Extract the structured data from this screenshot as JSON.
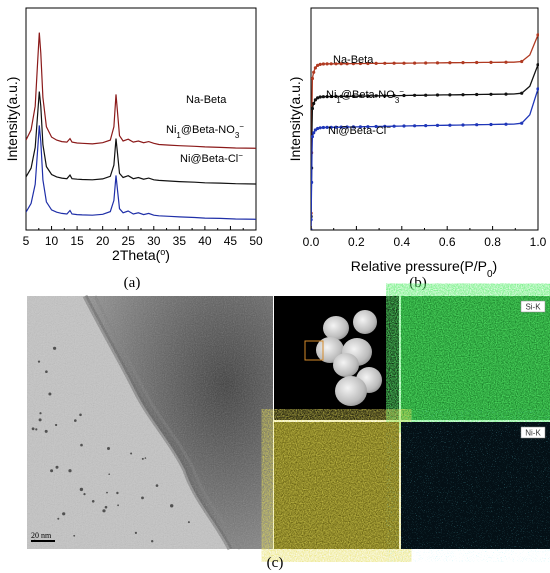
{
  "chart_data": [
    {
      "panel": "(a)",
      "type": "line",
      "xlabel": "2Theta(°)",
      "ylabel": "Intensity(a.u.)",
      "xlim": [
        5,
        50
      ],
      "xticks": [
        5,
        10,
        15,
        20,
        25,
        30,
        35,
        40,
        45,
        50
      ],
      "yticks": [],
      "grid": false,
      "series": [
        {
          "name": "Na-Beta",
          "name_parts": [
            "Na-Beta",
            "",
            "",
            ""
          ],
          "color": "#8B1A1A",
          "offset": 2.4,
          "x": [
            5,
            6,
            6.8,
            7.3,
            7.6,
            7.9,
            8.3,
            9,
            10,
            11,
            12,
            13,
            13.6,
            14,
            15,
            16,
            18,
            20,
            21.5,
            22.2,
            22.6,
            22.9,
            23.3,
            24,
            25,
            26,
            27,
            28,
            29,
            30,
            31,
            33,
            35,
            38,
            40,
            43,
            46,
            50
          ],
          "y": [
            0.45,
            0.8,
            1.6,
            3.2,
            4.1,
            3.4,
            1.9,
            0.9,
            0.55,
            0.45,
            0.4,
            0.38,
            0.5,
            0.38,
            0.35,
            0.34,
            0.32,
            0.36,
            0.45,
            0.9,
            2.0,
            1.4,
            0.6,
            0.42,
            0.48,
            0.38,
            0.42,
            0.36,
            0.4,
            0.34,
            0.3,
            0.28,
            0.26,
            0.24,
            0.22,
            0.2,
            0.18,
            0.17
          ]
        },
        {
          "name": "Ni1@Beta-NO3−",
          "name_parts": [
            "Ni",
            "1",
            "@Beta-NO",
            "3"
          ],
          "color": "#111111",
          "offset": 1.2,
          "x": [
            5,
            6,
            6.8,
            7.3,
            7.6,
            7.9,
            8.3,
            9,
            10,
            11,
            12,
            13,
            13.6,
            14,
            15,
            16,
            18,
            20,
            21.5,
            22.2,
            22.6,
            22.9,
            23.3,
            24,
            25,
            26,
            27,
            28,
            29,
            30,
            31,
            33,
            35,
            38,
            40,
            43,
            46,
            50
          ],
          "y": [
            0.4,
            0.7,
            1.4,
            2.6,
            3.3,
            2.8,
            1.5,
            0.75,
            0.48,
            0.4,
            0.36,
            0.34,
            0.46,
            0.34,
            0.32,
            0.31,
            0.3,
            0.33,
            0.42,
            0.8,
            1.7,
            1.2,
            0.52,
            0.38,
            0.44,
            0.34,
            0.38,
            0.32,
            0.36,
            0.3,
            0.28,
            0.26,
            0.24,
            0.22,
            0.2,
            0.19,
            0.17,
            0.16
          ]
        },
        {
          "name": "Ni@Beta-Cl−",
          "name_parts": [
            "Ni@Beta-Cl",
            "",
            "",
            ""
          ],
          "color": "#1F2FA8",
          "offset": 0,
          "x": [
            5,
            6,
            6.8,
            7.3,
            7.6,
            7.9,
            8.3,
            9,
            10,
            11,
            12,
            13,
            13.6,
            14,
            15,
            16,
            18,
            20,
            21.5,
            22.2,
            22.6,
            22.9,
            23.3,
            24,
            25,
            26,
            27,
            28,
            29,
            30,
            31,
            33,
            35,
            38,
            40,
            43,
            46,
            50
          ],
          "y": [
            0.4,
            0.7,
            1.35,
            2.6,
            3.35,
            2.8,
            1.5,
            0.75,
            0.48,
            0.4,
            0.36,
            0.34,
            0.46,
            0.34,
            0.32,
            0.31,
            0.3,
            0.33,
            0.42,
            0.8,
            1.65,
            1.15,
            0.52,
            0.38,
            0.44,
            0.34,
            0.38,
            0.32,
            0.36,
            0.3,
            0.28,
            0.26,
            0.24,
            0.22,
            0.2,
            0.19,
            0.17,
            0.16
          ]
        }
      ]
    },
    {
      "panel": "(b)",
      "type": "scatter",
      "xlabel": "Relative pressure(P/P",
      "xlabel_sub": "0",
      "xlabel_end": ")",
      "ylabel": "Intensity(a.u.)",
      "xlim": [
        0,
        1
      ],
      "xticks": [
        "0.0",
        "0.2",
        "0.4",
        "0.6",
        "0.8",
        "1.0"
      ],
      "yticks": [],
      "grid": false,
      "series": [
        {
          "name": "Na-Beta",
          "name_parts": [
            "Na-Beta",
            "",
            "",
            ""
          ],
          "color": "#B03A22",
          "base": 8.6,
          "rise": 1.9,
          "plateau_slope": 0.35,
          "tail": 1.4
        },
        {
          "name": "Ni1@Beta-NO3−",
          "name_parts": [
            "Ni",
            "1",
            "@Beta-NO",
            "3"
          ],
          "color": "#111111",
          "base": 6.9,
          "rise": 1.7,
          "plateau_slope": 0.55,
          "tail": 1.5
        },
        {
          "name": "Ni@Beta-Cl−",
          "name_parts": [
            "Ni@Beta-Cl",
            "",
            "",
            ""
          ],
          "color": "#1F36B8",
          "base": 5.3,
          "rise": 1.6,
          "plateau_slope": 0.7,
          "tail": 1.8
        }
      ]
    }
  ],
  "microscopy": {
    "panel": "(c)",
    "scale_bar": "20 nm",
    "maps": [
      {
        "tag": "Si-K",
        "color": "#1ea83a"
      },
      {
        "tag": "Ni-K",
        "color": "#2ab7c4"
      }
    ],
    "o_map_color": "#a79a1a"
  }
}
